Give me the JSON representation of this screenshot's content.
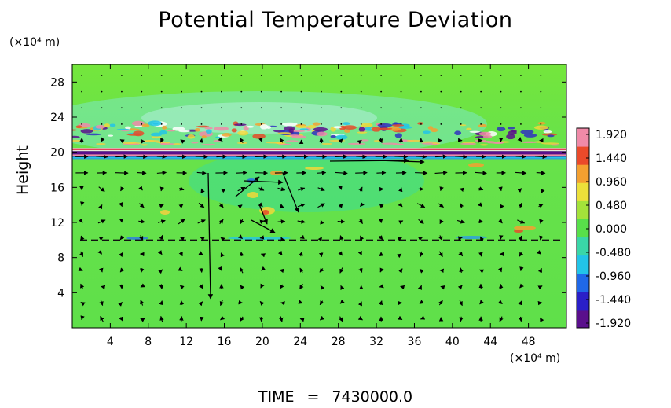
{
  "chart_data": {
    "type": "heatmap",
    "title": "Potential Temperature Deviation",
    "xlabel": "",
    "ylabel": "Height",
    "x_unit": "(×10⁴ m)",
    "y_unit": "(×10⁴ m)",
    "x_range": [
      0,
      52
    ],
    "y_range": [
      0,
      30
    ],
    "x_ticks": [
      4,
      8,
      12,
      16,
      20,
      24,
      28,
      32,
      36,
      40,
      44,
      48
    ],
    "y_ticks": [
      4,
      8,
      12,
      16,
      20,
      24,
      28
    ],
    "colorbar": {
      "min": -1.92,
      "max": 1.92,
      "tick_labels": [
        "1.920",
        "1.440",
        "0.960",
        "0.480",
        "0.000",
        "-0.480",
        "-0.960",
        "-1.440",
        "-1.920"
      ],
      "colors": [
        "#5a0f8c",
        "#2a1fc8",
        "#1f68e8",
        "#22c4e8",
        "#3ad6a8",
        "#58e04a",
        "#a4e23a",
        "#ece03a",
        "#f4a030",
        "#ea4a2a",
        "#f08aa8"
      ]
    },
    "background_value": 0.15,
    "bands": [
      {
        "y": 20.2,
        "note": "strong alternating stripes, values -1.92 to 1.92"
      },
      {
        "y": 22.5,
        "note": "noisy mixed values around tropopause"
      },
      {
        "y": 10.0,
        "note": "weak dashed inversion line"
      }
    ],
    "vector_field": true
  },
  "footer": {
    "time_label": "TIME",
    "time_eq": "=",
    "time_value": "7430000.0"
  }
}
